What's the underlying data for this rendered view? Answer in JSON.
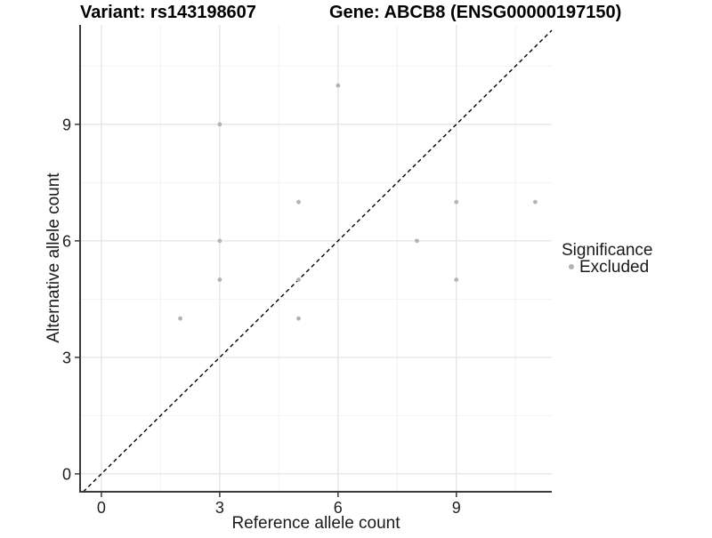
{
  "chart_data": {
    "type": "scatter",
    "title_left": "Variant: rs143198607",
    "title_right": "Gene: ABCB8 (ENSG00000197150)",
    "xlabel": "Reference allele count",
    "ylabel": "Alternative allele count",
    "xlim": [
      -0.54,
      11.42
    ],
    "ylim": [
      -0.46,
      11.56
    ],
    "x_major_ticks": [
      0,
      3,
      6,
      9
    ],
    "y_major_ticks": [
      0,
      3,
      6,
      9
    ],
    "x_minor_gridlines": [
      1.5,
      4.5,
      7.5,
      10.5
    ],
    "y_minor_gridlines": [
      1.5,
      4.5,
      7.5,
      10.5
    ],
    "grid": "major and minor, light gray on white",
    "identity_line": {
      "equation": "y = x",
      "style": "dashed",
      "color": "#000000"
    },
    "series": [
      {
        "name": "Excluded",
        "color": "#b3b3b3",
        "points": [
          [
            2,
            4
          ],
          [
            3,
            5
          ],
          [
            3,
            6
          ],
          [
            3,
            9
          ],
          [
            5,
            4
          ],
          [
            5,
            5
          ],
          [
            5,
            7
          ],
          [
            6,
            10
          ],
          [
            8,
            6
          ],
          [
            9,
            5
          ],
          [
            9,
            7
          ],
          [
            11,
            7
          ]
        ]
      }
    ],
    "legend": {
      "title": "Significance",
      "position": "right",
      "entries": [
        {
          "label": "Excluded",
          "color": "#b3b3b3"
        }
      ]
    }
  },
  "colors": {
    "background": "#ffffff",
    "axis_line": "#3a3a3a",
    "grid_major": "#e4e4e4",
    "grid_minor": "#f2f2f2",
    "point": "#b3b3b3",
    "dashed_line": "#000000"
  }
}
